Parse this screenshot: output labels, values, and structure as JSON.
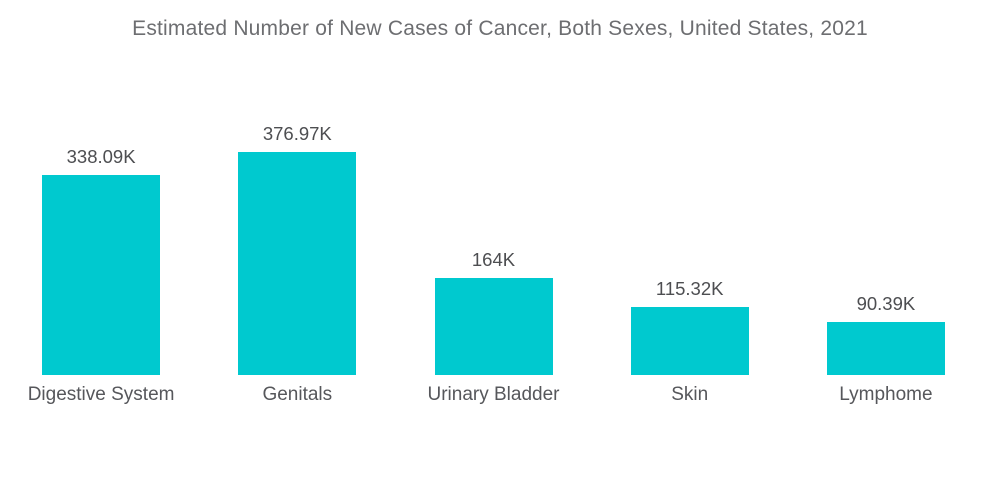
{
  "header": {
    "title": "Estimated Number of New Cases of Cancer, Both Sexes, United States, 2021"
  },
  "chart_data": {
    "type": "bar",
    "title": "Estimated Number of New Cases of Cancer, Both Sexes, United States, 2021",
    "categories": [
      "Digestive System",
      "Genitals",
      "Urinary Bladder",
      "Skin",
      "Lymphome"
    ],
    "values": [
      338.09,
      376.97,
      164,
      115.32,
      90.39
    ],
    "value_labels": [
      "338.09K",
      "376.97K",
      "164K",
      "115.32K",
      "90.39K"
    ],
    "unit": "K",
    "xlabel": "",
    "ylabel": "",
    "ylim": [
      0,
      400
    ],
    "grid": false,
    "legend_position": "none",
    "bar_color": "#00C9CF",
    "title_color": "#6d6e71",
    "value_label_color": "#4d4e51",
    "category_label_color": "#56575b",
    "background_color": "#ffffff"
  }
}
